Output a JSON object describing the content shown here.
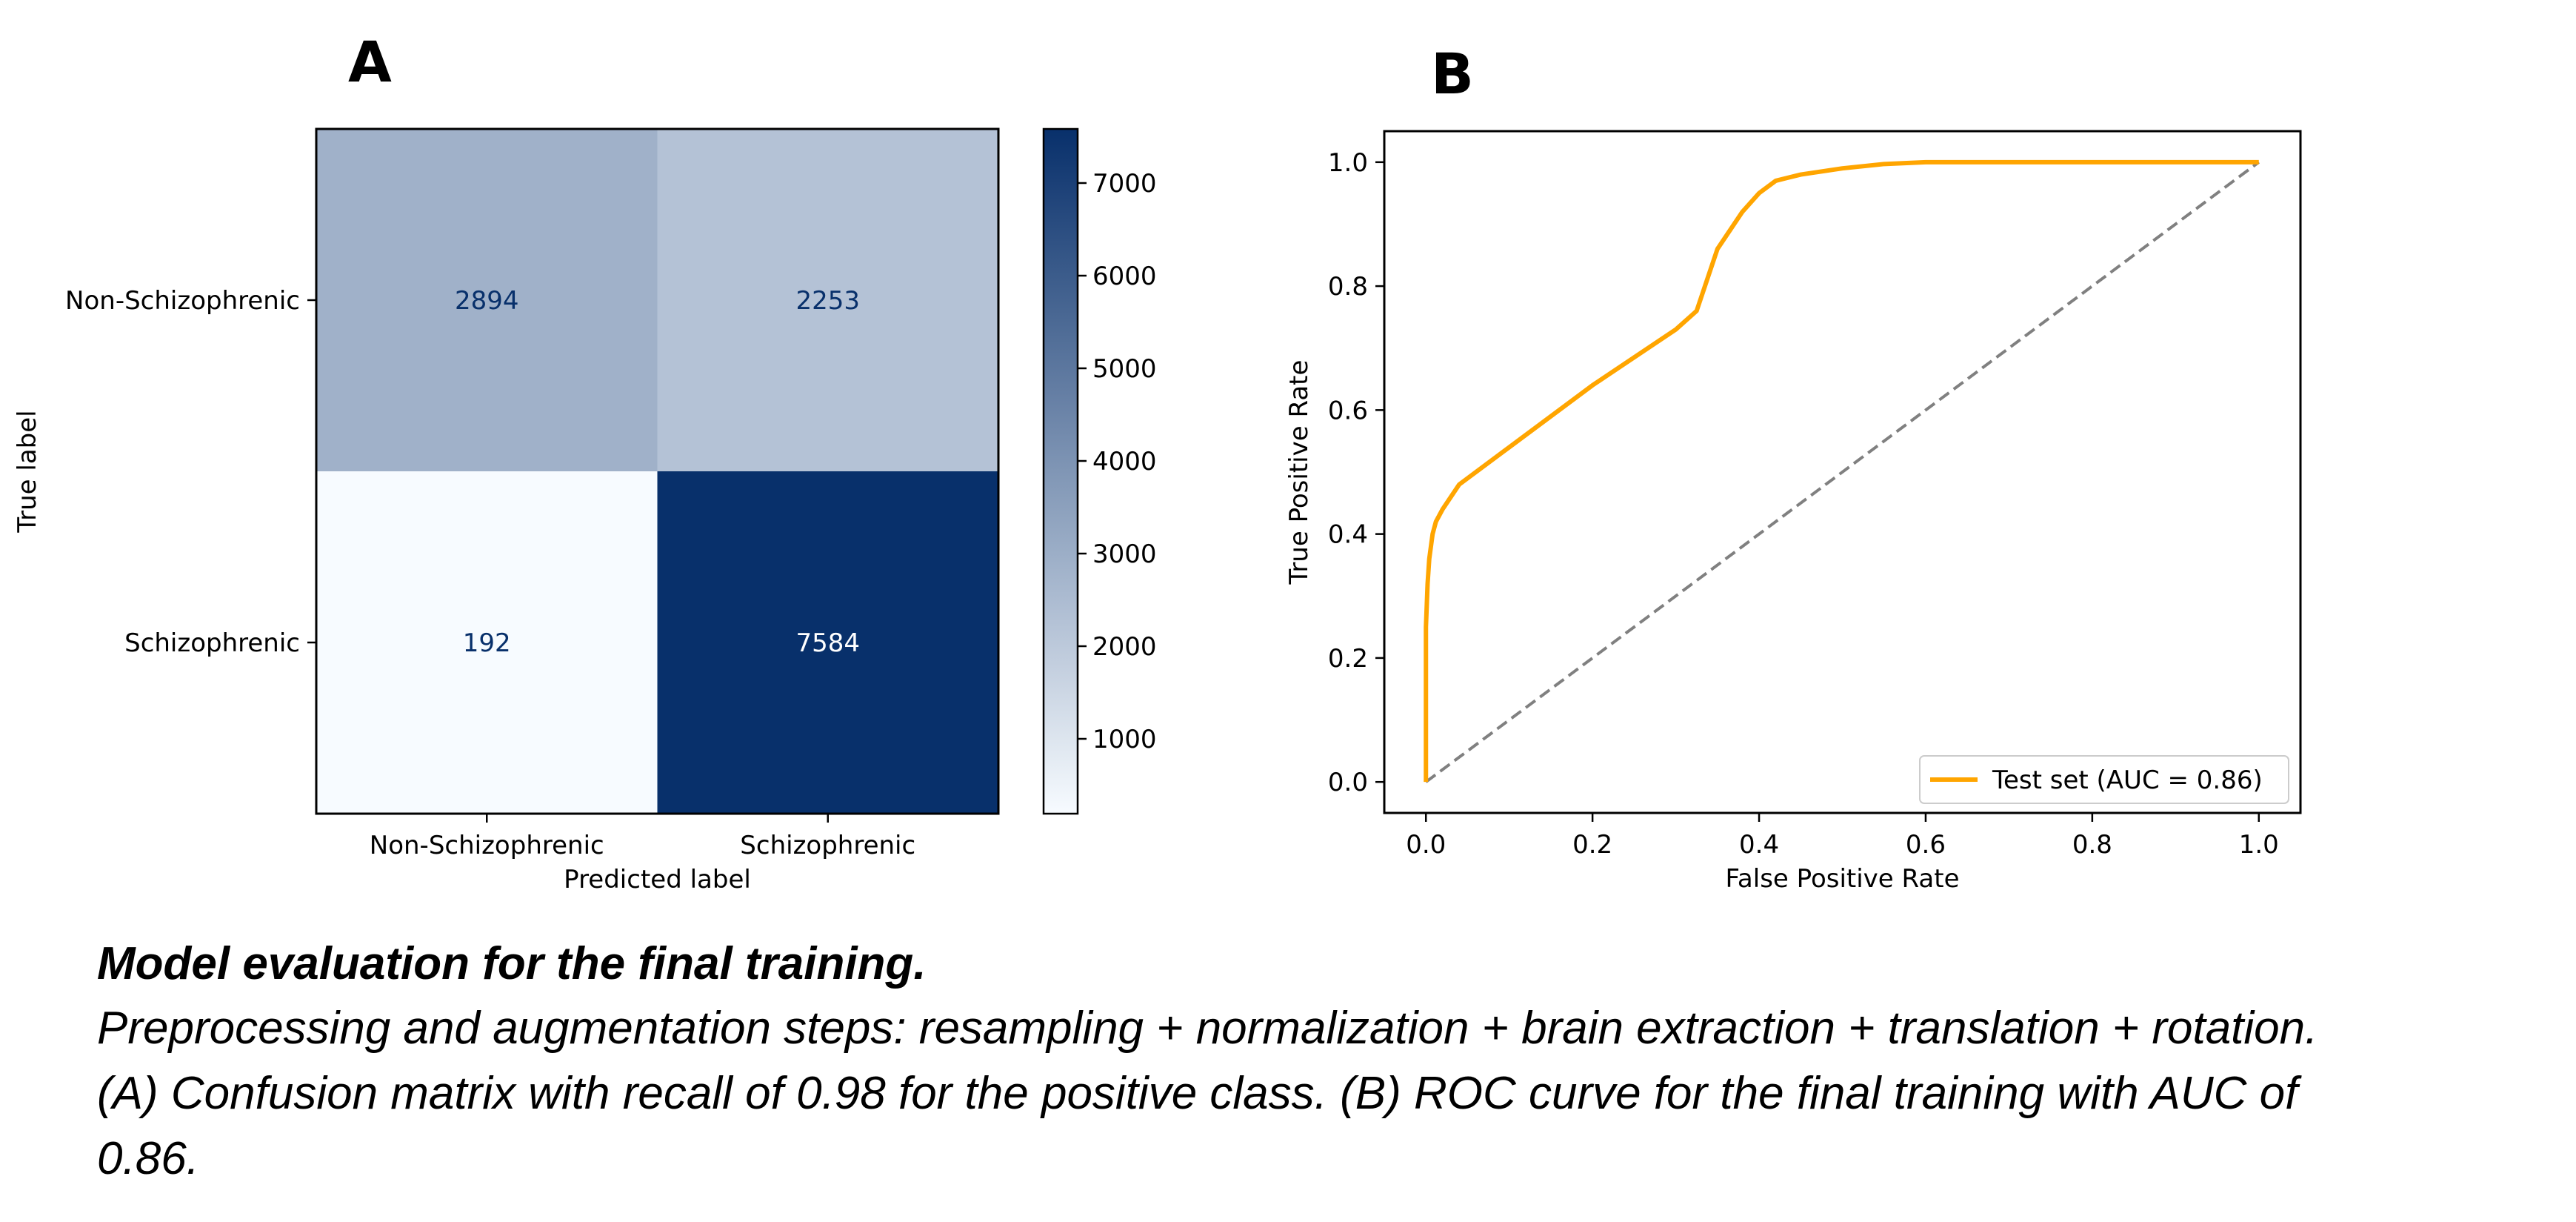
{
  "panel_labels": {
    "a": "A",
    "b": "B"
  },
  "caption": {
    "title": "Model evaluation for the final training.",
    "line1": "Preprocessing and augmentation steps: resampling + normalization + brain extraction + translation + rotation.",
    "line2": "(A) Confusion matrix with recall of  0.98 for the positive class. (B) ROC curve for the final training with AUC of",
    "line3": "0.86."
  },
  "colors": {
    "cm_low": "#f7fbff",
    "cm_high": "#08306b",
    "roc": "#ffa500",
    "diagonal": "#808080"
  },
  "chart_data": [
    {
      "type": "heatmap",
      "x_categories": [
        "Non-Schizophrenic",
        "Schizophrenic"
      ],
      "y_categories": [
        "Non-Schizophrenic",
        "Schizophrenic"
      ],
      "matrix": [
        [
          2894,
          2253
        ],
        [
          192,
          7584
        ]
      ],
      "xlabel": "Predicted label",
      "ylabel": "True label",
      "colorbar": {
        "range": [
          192,
          7584
        ],
        "ticks": [
          1000,
          2000,
          3000,
          4000,
          5000,
          6000,
          7000
        ],
        "colormap": "Blues"
      }
    },
    {
      "type": "line",
      "xlabel": "False Positive Rate",
      "ylabel": "True Positive Rate",
      "xlim": [
        -0.05,
        1.05
      ],
      "ylim": [
        -0.05,
        1.05
      ],
      "xticks": [
        "0.0",
        "0.2",
        "0.4",
        "0.6",
        "0.8",
        "1.0"
      ],
      "yticks": [
        "0.0",
        "0.2",
        "0.4",
        "0.6",
        "0.8",
        "1.0"
      ],
      "grid": false,
      "legend_position": "lower-right",
      "series": [
        {
          "name": "Test set (AUC = 0.86)",
          "style": "solid",
          "x": [
            0.0,
            0.0,
            0.002,
            0.004,
            0.008,
            0.012,
            0.02,
            0.03,
            0.04,
            0.05,
            0.1,
            0.2,
            0.3,
            0.325,
            0.33,
            0.35,
            0.38,
            0.4,
            0.42,
            0.45,
            0.5,
            0.55,
            0.6,
            0.7,
            0.8,
            0.9,
            1.0
          ],
          "y": [
            0.0,
            0.25,
            0.32,
            0.36,
            0.4,
            0.42,
            0.44,
            0.46,
            0.48,
            0.49,
            0.54,
            0.64,
            0.73,
            0.76,
            0.78,
            0.86,
            0.92,
            0.95,
            0.97,
            0.98,
            0.99,
            0.997,
            1.0,
            1.0,
            1.0,
            1.0,
            1.0
          ]
        },
        {
          "style": "dashed",
          "x": [
            0.0,
            1.0
          ],
          "y": [
            0.0,
            1.0
          ]
        }
      ]
    }
  ]
}
